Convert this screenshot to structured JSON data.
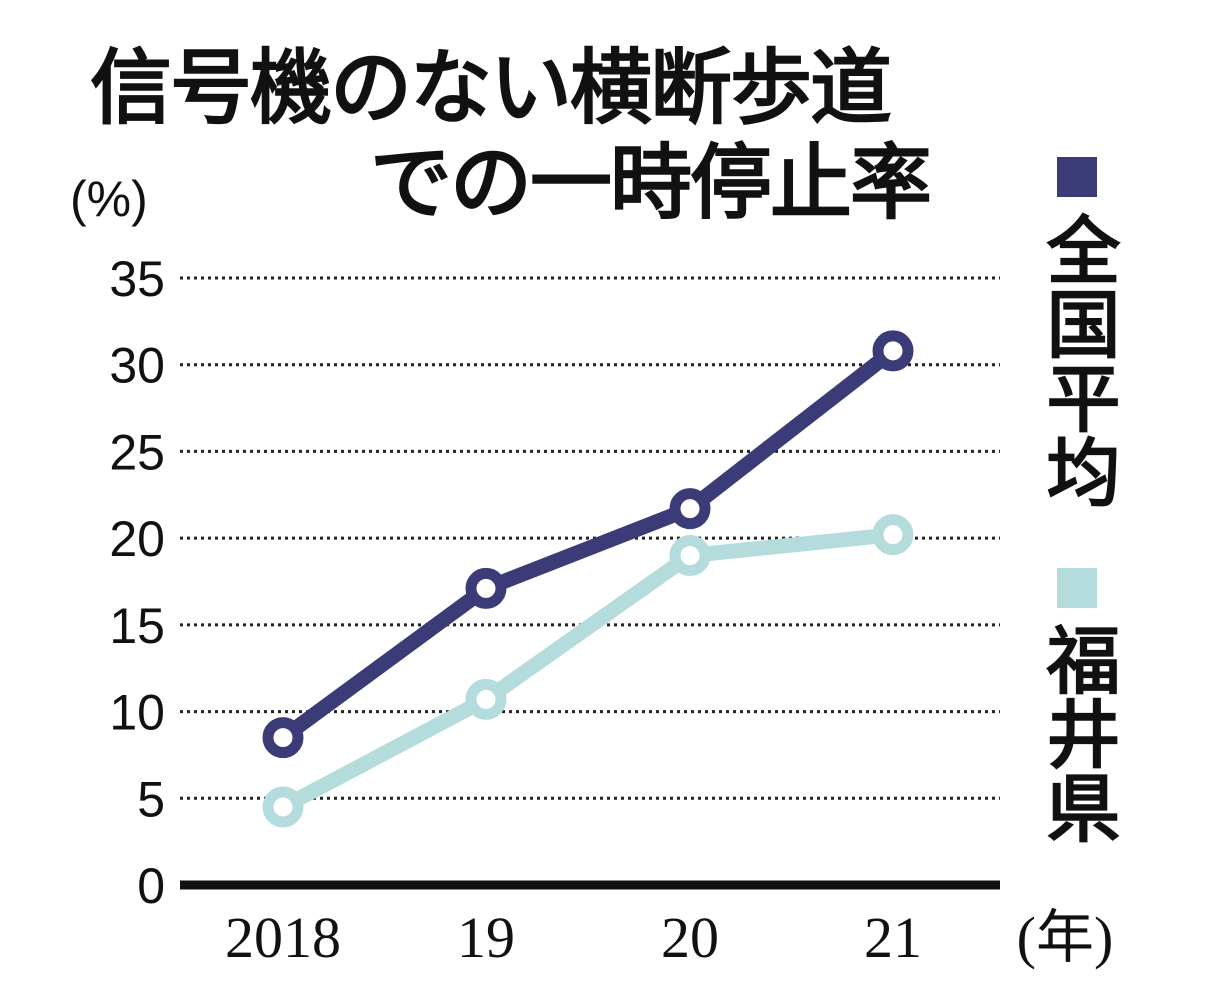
{
  "chart_data": {
    "type": "line",
    "title_line1": "信号機のない横断歩道",
    "title_line2": "での一時停止率",
    "ylabel": "(%)",
    "xlabel": "(年)",
    "categories": [
      "2018",
      "19",
      "20",
      "21"
    ],
    "yticks": [
      "0",
      "5",
      "10",
      "15",
      "20",
      "25",
      "30",
      "35"
    ],
    "ylim": [
      0,
      35
    ],
    "grid": true,
    "legend_position": "right",
    "series": [
      {
        "name": "全国平均",
        "color": "#3b3b78",
        "values": [
          8.5,
          17.1,
          21.7,
          30.8
        ]
      },
      {
        "name": "福井県",
        "color": "#b5dcdc",
        "values": [
          4.5,
          10.7,
          19.0,
          20.2
        ]
      }
    ]
  }
}
